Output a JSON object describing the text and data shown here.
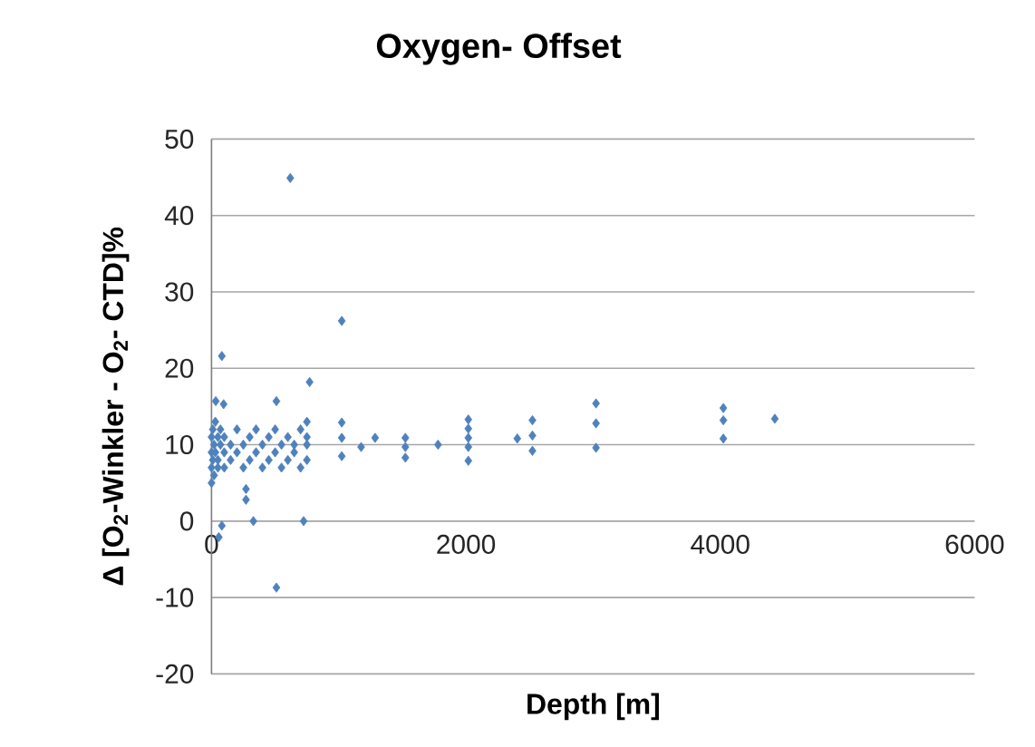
{
  "chart_data": {
    "type": "scatter",
    "title": "Oxygen- Offset",
    "xlabel": "Depth [m]",
    "ylabel": "Δ [O$_{2}$-Winkler - O$_{2}$- CTD]%",
    "xlim": [
      0,
      6000
    ],
    "ylim": [
      -20,
      50
    ],
    "xticks": [
      0,
      2000,
      4000,
      6000
    ],
    "yticks": [
      -20,
      -10,
      0,
      10,
      20,
      30,
      40,
      50
    ],
    "grid": "y",
    "marker": "diamond",
    "series": [
      {
        "color": "#4f81bd",
        "x": [
          619,
          1024,
          81,
          771,
          510,
          33,
          95,
          329,
          724,
          81,
          57,
          271,
          271,
          510,
          1024,
          1024,
          1024,
          1176,
          1286,
          1524,
          1524,
          1524,
          1781,
          2019,
          2019,
          2019,
          2019,
          2019,
          2404,
          2523,
          2523,
          2523,
          3023,
          3023,
          3023,
          4024,
          4024,
          4024,
          4429,
          0,
          0,
          0,
          0,
          10,
          10,
          20,
          20,
          30,
          30,
          50,
          50,
          50,
          70,
          70,
          100,
          100,
          100,
          150,
          150,
          200,
          200,
          250,
          250,
          300,
          300,
          350,
          350,
          400,
          400,
          450,
          450,
          500,
          500,
          550,
          550,
          600,
          600,
          650,
          650,
          700,
          700,
          750,
          750,
          750,
          750
        ],
        "values": [
          44.9,
          26.2,
          21.6,
          18.2,
          15.7,
          15.7,
          15.3,
          0,
          0,
          -0.6,
          -2.1,
          4.2,
          2.8,
          -8.7,
          12.9,
          10.9,
          8.5,
          9.7,
          10.9,
          10.9,
          9.7,
          8.3,
          10,
          13.3,
          12.1,
          10.9,
          9.7,
          7.9,
          10.8,
          13.2,
          11.2,
          9.2,
          15.4,
          12.8,
          9.6,
          10.8,
          13.2,
          14.8,
          13.4,
          9,
          7,
          11,
          5,
          12,
          8,
          10,
          6,
          9,
          13,
          11,
          8,
          7,
          10,
          12,
          9,
          7,
          11,
          8,
          10,
          12,
          9,
          7,
          10,
          11,
          8,
          9,
          12,
          10,
          7,
          8,
          11,
          9,
          12,
          7,
          10,
          11,
          8,
          9,
          10,
          12,
          7,
          10,
          8,
          13,
          11
        ]
      }
    ]
  }
}
